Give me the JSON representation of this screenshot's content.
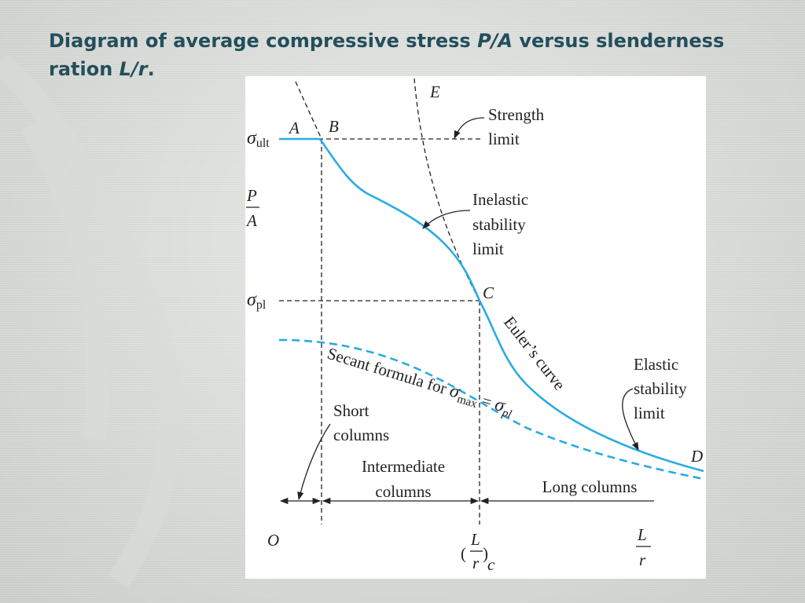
{
  "header": {
    "title": [
      [
        "Diagram of average compressive stress ",
        "P/A",
        " versus slenderness"
      ],
      [
        "ration ",
        "L/r",
        "."
      ]
    ]
  },
  "diagram": {
    "y_axis": {
      "sigma_ult": {
        "symbol": "σ",
        "sub": "ult"
      },
      "label": {
        "num": "P",
        "den": "A"
      },
      "sigma_pl": {
        "symbol": "σ",
        "sub": "pl"
      }
    },
    "x_axis": {
      "origin": "O",
      "critical": {
        "num": "L",
        "den": "r",
        "sub": "c"
      },
      "label": {
        "num": "L",
        "den": "r"
      }
    },
    "points": [
      "A",
      "B",
      "C",
      "D",
      "E"
    ],
    "annotations": {
      "strength_limit": [
        "Strength",
        "limit"
      ],
      "inelastic": [
        "Inelastic",
        "stability",
        "limit"
      ],
      "elastic": [
        "Elastic",
        "stability",
        "limit"
      ],
      "euler": "Euler’s curve",
      "secant": [
        "Secant formula for ",
        "σ",
        "max",
        " = ",
        "σ",
        "pl"
      ]
    },
    "regions": {
      "short": [
        "Short",
        "columns"
      ],
      "intermediate": [
        "Intermediate",
        "columns"
      ],
      "long": "Long columns"
    }
  }
}
